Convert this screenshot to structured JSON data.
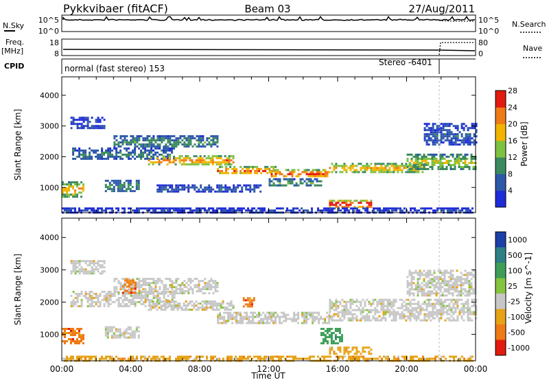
{
  "header": {
    "title": "Pykkvibaer (fitACF)",
    "beam": "Beam 03",
    "date": "27/Aug/2011"
  },
  "status_panels": {
    "nsky_label": "N.Sky",
    "nsky_ticks": [
      "10^5",
      "10^0"
    ],
    "nsearch_label": "N.Search",
    "nsearch_ticks": [
      "10^5",
      "10^0"
    ],
    "freq_label": "Freq.",
    "freq_unit": "[MHz]",
    "freq_ticks": [
      "18",
      "8"
    ],
    "nave_label": "Nave",
    "nave_ticks": [
      "80",
      "0"
    ],
    "cpid_label": "CPID",
    "cpid_mode": "normal (fast stereo) 153",
    "cpid_mode2": "Stereo -6401"
  },
  "chart_data": [
    {
      "type": "heatmap",
      "title": "",
      "ylabel": "Slant Range [km]",
      "ylim": [
        180,
        4600
      ],
      "yticks": [
        "1000",
        "2000",
        "3000",
        "4000"
      ],
      "x_ticks": [
        "00:00",
        "04:00",
        "08:00",
        "12:00",
        "16:00",
        "20:00",
        "00:00"
      ],
      "colorbar_label": "Power [dB]",
      "colorbar_ticks": [
        "4",
        "8",
        "12",
        "16",
        "20",
        "24",
        "28"
      ],
      "colorbar_range": [
        0,
        30
      ],
      "colors": [
        "#1f2bd8",
        "#2d58a8",
        "#3b8a5f",
        "#7fc242",
        "#f2b400",
        "#f07a16",
        "#e21b0f"
      ],
      "bands": [
        {
          "t": [
            0.6,
            6.5
          ],
          "r": [
            1900,
            2300
          ],
          "v": 8
        },
        {
          "t": [
            3.0,
            9.0
          ],
          "r": [
            2300,
            2700
          ],
          "v": 10
        },
        {
          "t": [
            5.0,
            10.0
          ],
          "r": [
            1750,
            2050
          ],
          "v": 22
        },
        {
          "t": [
            9.0,
            12.5
          ],
          "r": [
            1450,
            1700
          ],
          "v": 24
        },
        {
          "t": [
            12.0,
            15.5
          ],
          "r": [
            1350,
            1600
          ],
          "v": 26
        },
        {
          "t": [
            15.5,
            21.0
          ],
          "r": [
            1500,
            1800
          ],
          "v": 20
        },
        {
          "t": [
            20.0,
            24.0
          ],
          "r": [
            1600,
            2100
          ],
          "v": 16
        },
        {
          "t": [
            15.5,
            18.0
          ],
          "r": [
            350,
            600
          ],
          "v": 30
        },
        {
          "t": [
            0.0,
            1.2
          ],
          "r": [
            700,
            1200
          ],
          "v": 20
        },
        {
          "t": [
            2.5,
            4.5
          ],
          "r": [
            900,
            1250
          ],
          "v": 10
        },
        {
          "t": [
            5.5,
            11.5
          ],
          "r": [
            850,
            1100
          ],
          "v": 6
        },
        {
          "t": [
            12.0,
            15.0
          ],
          "r": [
            1050,
            1300
          ],
          "v": 12
        },
        {
          "t": [
            0.0,
            24.0
          ],
          "r": [
            200,
            350
          ],
          "v": 4
        },
        {
          "t": [
            0.5,
            2.5
          ],
          "r": [
            2900,
            3300
          ],
          "v": 5
        },
        {
          "t": [
            21.0,
            24.0
          ],
          "r": [
            2400,
            3100
          ],
          "v": 6
        }
      ]
    },
    {
      "type": "heatmap",
      "title": "",
      "xlabel": "Time UT",
      "ylabel": "Slant Range [km]",
      "ylim": [
        180,
        4600
      ],
      "yticks": [
        "1000",
        "2000",
        "3000",
        "4000"
      ],
      "x_ticks": [
        "00:00",
        "04:00",
        "08:00",
        "12:00",
        "16:00",
        "20:00",
        "00:00"
      ],
      "colorbar_label": "Velocity [m s^-1]",
      "colorbar_ticks": [
        "1000",
        "500",
        "100",
        "25",
        "-25",
        "-100",
        "-500",
        "-1000"
      ],
      "colors": [
        "#1c3fa8",
        "#2f7f87",
        "#3e9e58",
        "#86c440",
        "#c7c7c7",
        "#e6a318",
        "#f07a16",
        "#e21b0f"
      ],
      "bands": [
        {
          "t": [
            0.5,
            6.5
          ],
          "r": [
            1900,
            2350
          ],
          "c": 4
        },
        {
          "t": [
            3.0,
            9.0
          ],
          "r": [
            2300,
            2750
          ],
          "c": 4
        },
        {
          "t": [
            5.0,
            10.0
          ],
          "r": [
            1750,
            2050
          ],
          "c": 4
        },
        {
          "t": [
            9.0,
            15.5
          ],
          "r": [
            1350,
            1700
          ],
          "c": 4
        },
        {
          "t": [
            15.5,
            24.0
          ],
          "r": [
            1450,
            2100
          ],
          "c": 4
        },
        {
          "t": [
            20.0,
            24.0
          ],
          "r": [
            2200,
            3000
          ],
          "c": 4
        },
        {
          "t": [
            15.5,
            18.0
          ],
          "r": [
            380,
            620
          ],
          "c": 5
        },
        {
          "t": [
            0.0,
            24.0
          ],
          "r": [
            200,
            340
          ],
          "c": 5
        },
        {
          "t": [
            0.0,
            1.2
          ],
          "r": [
            700,
            1200
          ],
          "c": 6
        },
        {
          "t": [
            3.5,
            4.3
          ],
          "r": [
            2300,
            2700
          ],
          "c": 6
        },
        {
          "t": [
            10.5,
            11.2
          ],
          "r": [
            1850,
            2150
          ],
          "c": 6
        },
        {
          "t": [
            15.0,
            16.2
          ],
          "r": [
            700,
            1200
          ],
          "c": 2
        },
        {
          "t": [
            2.5,
            4.5
          ],
          "r": [
            900,
            1250
          ],
          "c": 4
        },
        {
          "t": [
            0.5,
            2.5
          ],
          "r": [
            2900,
            3300
          ],
          "c": 4
        }
      ]
    }
  ]
}
